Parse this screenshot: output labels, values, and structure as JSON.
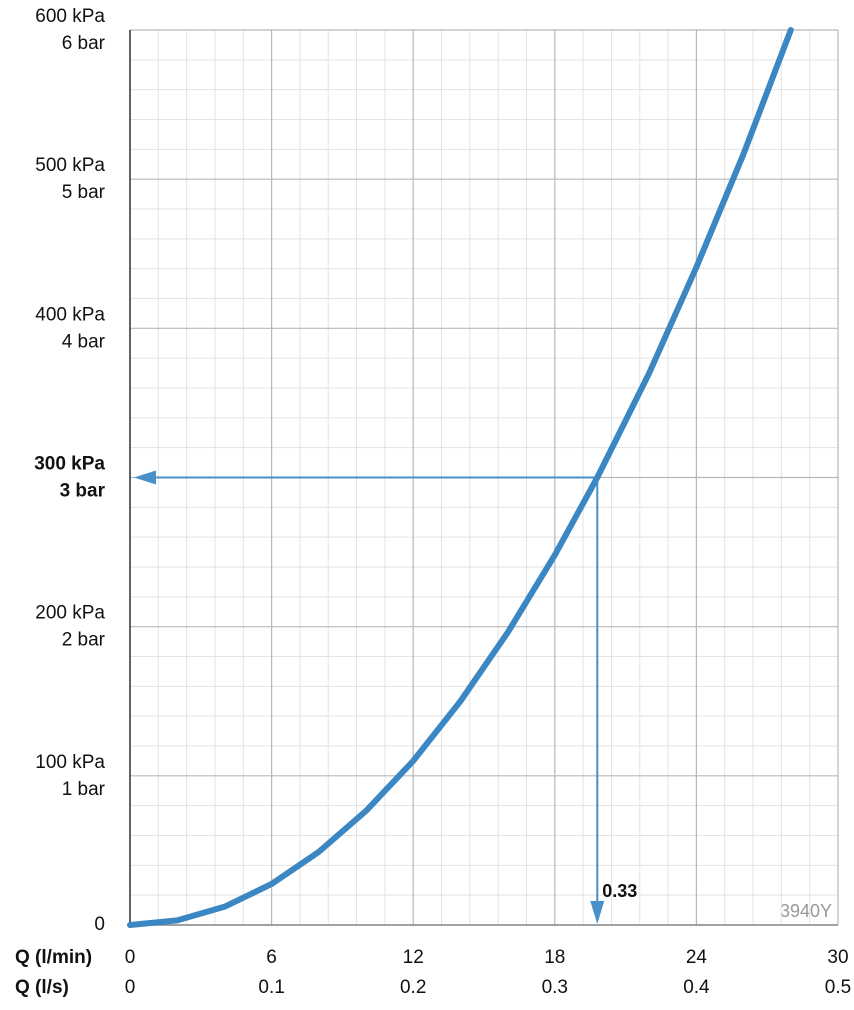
{
  "chart_data": {
    "type": "line",
    "x_axis_label": "Q (l/min)",
    "x2_axis_label": "Q (l/s)",
    "x": [
      0,
      2,
      4,
      6,
      8,
      10,
      12,
      14,
      16,
      18,
      19.8,
      22,
      24,
      26,
      28
    ],
    "series": [
      {
        "color": "#3a87c4",
        "values": [
          0,
          3.1,
          12.2,
          27.5,
          49,
          76.5,
          110,
          150,
          196,
          248,
          300,
          370,
          441,
          517,
          600
        ]
      }
    ],
    "xlim": [
      0,
      30
    ],
    "xticks": [
      0,
      6,
      12,
      18,
      24,
      30
    ],
    "x2lim": [
      0,
      0.5
    ],
    "x2ticks": [
      0,
      0.1,
      0.2,
      0.3,
      0.4,
      0.5
    ],
    "ylim": [
      0,
      600
    ],
    "yticks": [
      0,
      {
        "value": 100,
        "label": "100 kPa"
      },
      {
        "value": 200,
        "label": "200 kPa"
      },
      {
        "value": 300,
        "label": "300 kPa"
      },
      {
        "value": 400,
        "label": "400 kPa"
      },
      {
        "value": 500,
        "label": "500 kPa"
      },
      {
        "value": 600,
        "label": "600 kPa"
      }
    ],
    "y2lim": [
      0,
      6
    ],
    "y2ticks": [
      {
        "value": 1,
        "label": "1 bar"
      },
      {
        "value": 2,
        "label": "2 bar"
      },
      {
        "value": 3,
        "label": "3 bar"
      },
      {
        "value": 4,
        "label": "4 bar"
      },
      {
        "value": 5,
        "label": "5 bar"
      },
      {
        "value": 6,
        "label": "6 bar"
      }
    ],
    "grid": true,
    "minor_divisions": 5,
    "annotation": {
      "x": 19.8,
      "y": 300,
      "label": "0.33",
      "color": "#4a90c8"
    },
    "watermark": "3940Y"
  }
}
